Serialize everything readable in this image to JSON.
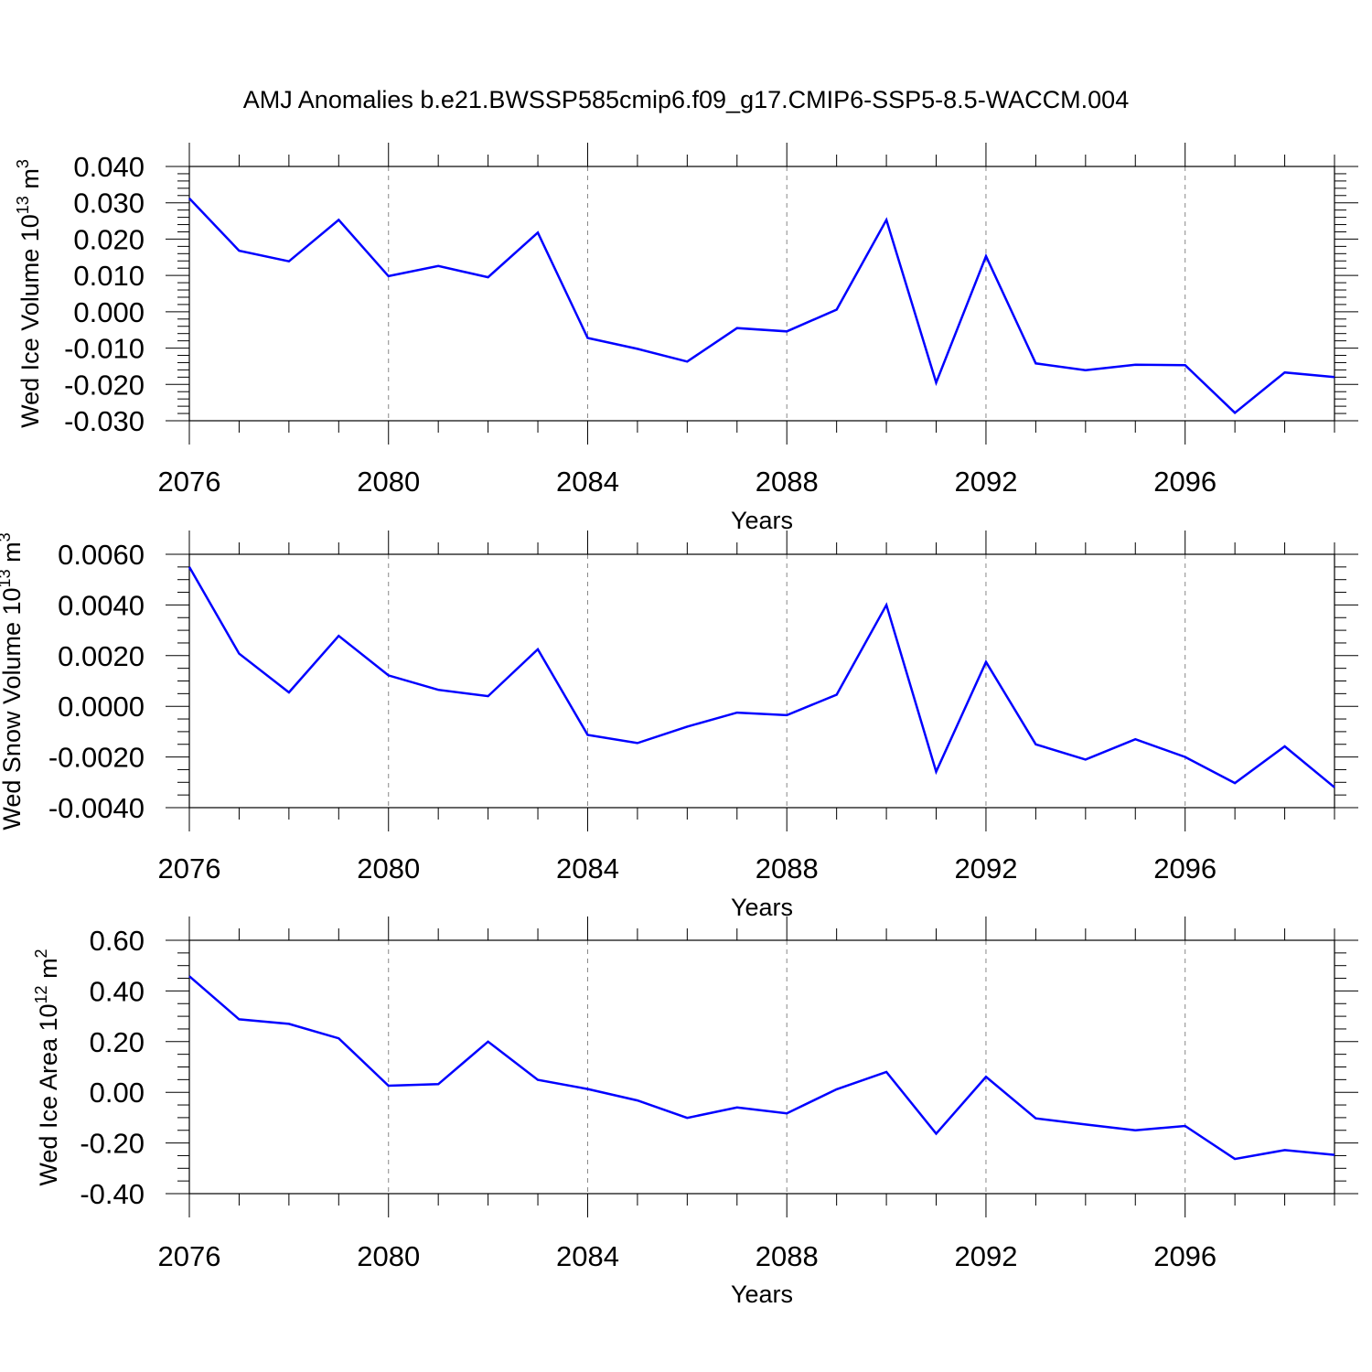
{
  "title": "AMJ Anomalies b.e21.BWSSP585cmip6.f09_g17.CMIP6-SSP5-8.5-WACCM.004",
  "line_color": "#0000ff",
  "chart_data": [
    {
      "type": "line",
      "ylabel_main": "Wed Ice Volume 10",
      "ylabel_exp": "13",
      "ylabel_unit": " m",
      "ylabel_unit_exp": "3",
      "xlabel": "Years",
      "xlim": [
        2076,
        2099
      ],
      "ylim": [
        -0.03,
        0.04
      ],
      "yticks": [
        -0.03,
        -0.02,
        -0.01,
        0.0,
        0.01,
        0.02,
        0.03,
        0.04
      ],
      "ytick_labels": [
        "-0.030",
        "-0.020",
        "-0.010",
        "0.000",
        "0.010",
        "0.020",
        "0.030",
        "0.040"
      ],
      "xticks": [
        2076,
        2080,
        2084,
        2088,
        2092,
        2096
      ],
      "xtick_labels": [
        "2076",
        "2080",
        "2084",
        "2088",
        "2092",
        "2096"
      ],
      "x": [
        2076,
        2077,
        2078,
        2079,
        2080,
        2081,
        2082,
        2083,
        2084,
        2085,
        2086,
        2087,
        2088,
        2089,
        2090,
        2091,
        2092,
        2093,
        2094,
        2095,
        2096,
        2097,
        2098,
        2099
      ],
      "y": [
        0.0312,
        0.0168,
        0.0139,
        0.0253,
        0.0098,
        0.0126,
        0.0095,
        0.0218,
        -0.0072,
        -0.0102,
        -0.0137,
        -0.0045,
        -0.0054,
        0.0006,
        0.0253,
        -0.0195,
        0.0153,
        -0.0142,
        -0.0161,
        -0.0146,
        -0.0147,
        -0.0278,
        -0.0167,
        -0.018
      ],
      "grid": "vertical dashed at major x ticks"
    },
    {
      "type": "line",
      "ylabel_main": "Wed Snow Volume 10",
      "ylabel_exp": "13",
      "ylabel_unit": " m",
      "ylabel_unit_exp": "3",
      "xlabel": "Years",
      "xlim": [
        2076,
        2099
      ],
      "ylim": [
        -0.004,
        0.006
      ],
      "yticks": [
        -0.004,
        -0.002,
        0.0,
        0.002,
        0.004,
        0.006
      ],
      "ytick_labels": [
        "-0.0040",
        "-0.0020",
        "0.0000",
        "0.0020",
        "0.0040",
        "0.0060"
      ],
      "xticks": [
        2076,
        2080,
        2084,
        2088,
        2092,
        2096
      ],
      "xtick_labels": [
        "2076",
        "2080",
        "2084",
        "2088",
        "2092",
        "2096"
      ],
      "x": [
        2076,
        2077,
        2078,
        2079,
        2080,
        2081,
        2082,
        2083,
        2084,
        2085,
        2086,
        2087,
        2088,
        2089,
        2090,
        2091,
        2092,
        2093,
        2094,
        2095,
        2096,
        2097,
        2098,
        2099
      ],
      "y": [
        0.0055,
        0.00208,
        0.00055,
        0.00278,
        0.00122,
        0.00065,
        0.0004,
        0.00225,
        -0.00113,
        -0.00145,
        -0.0008,
        -0.00025,
        -0.00035,
        0.00046,
        0.004,
        -0.00258,
        0.00175,
        -0.0015,
        -0.0021,
        -0.0013,
        -0.002,
        -0.00303,
        -0.00158,
        -0.0032
      ],
      "grid": "vertical dashed at major x ticks"
    },
    {
      "type": "line",
      "ylabel_main": "Wed Ice Area 10",
      "ylabel_exp": "12",
      "ylabel_unit": " m",
      "ylabel_unit_exp": "2",
      "xlabel": "Years",
      "xlim": [
        2076,
        2099
      ],
      "ylim": [
        -0.4,
        0.6
      ],
      "yticks": [
        -0.4,
        -0.2,
        0.0,
        0.2,
        0.4,
        0.6
      ],
      "ytick_labels": [
        "-0.40",
        "-0.20",
        "0.00",
        "0.20",
        "0.40",
        "0.60"
      ],
      "xticks": [
        2076,
        2080,
        2084,
        2088,
        2092,
        2096
      ],
      "xtick_labels": [
        "2076",
        "2080",
        "2084",
        "2088",
        "2092",
        "2096"
      ],
      "x": [
        2076,
        2077,
        2078,
        2079,
        2080,
        2081,
        2082,
        2083,
        2084,
        2085,
        2086,
        2087,
        2088,
        2089,
        2090,
        2091,
        2092,
        2093,
        2094,
        2095,
        2096,
        2097,
        2098,
        2099
      ],
      "y": [
        0.458,
        0.288,
        0.27,
        0.213,
        0.026,
        0.032,
        0.2,
        0.049,
        0.013,
        -0.032,
        -0.101,
        -0.06,
        -0.083,
        0.012,
        0.08,
        -0.163,
        0.061,
        -0.103,
        -0.127,
        -0.15,
        -0.133,
        -0.263,
        -0.228,
        -0.247
      ],
      "grid": "vertical dashed at major x ticks"
    }
  ]
}
